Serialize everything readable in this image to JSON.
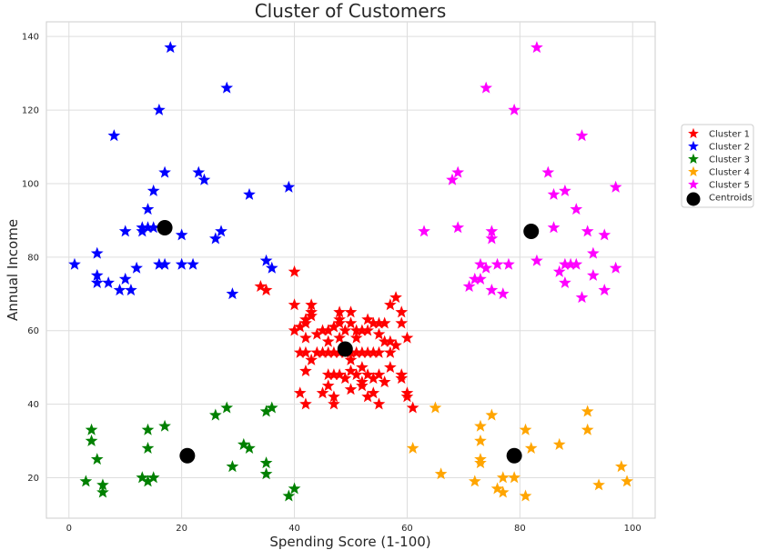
{
  "chart_data": {
    "type": "scatter",
    "title": "Cluster of Customers",
    "xlabel": "Spending Score (1-100)",
    "ylabel": "Annual Income",
    "xlim": [
      -4,
      104
    ],
    "ylim": [
      9,
      144
    ],
    "xticks": [
      0,
      20,
      40,
      60,
      80,
      100
    ],
    "yticks": [
      20,
      40,
      60,
      80,
      100,
      120,
      140
    ],
    "grid": true,
    "legend_position": "right",
    "series": [
      {
        "name": "Cluster 1",
        "color": "#ff0000",
        "marker": "star",
        "points": [
          [
            34,
            72
          ],
          [
            35,
            71
          ],
          [
            40,
            76
          ],
          [
            40,
            67
          ],
          [
            43,
            67
          ],
          [
            40,
            60
          ],
          [
            41,
            61
          ],
          [
            42,
            62
          ],
          [
            42,
            63
          ],
          [
            43,
            64
          ],
          [
            43,
            65
          ],
          [
            42,
            58
          ],
          [
            41,
            54
          ],
          [
            42,
            54
          ],
          [
            44,
            54
          ],
          [
            45,
            54
          ],
          [
            46,
            54
          ],
          [
            47,
            54
          ],
          [
            48,
            54
          ],
          [
            49,
            54
          ],
          [
            50,
            54
          ],
          [
            51,
            54
          ],
          [
            52,
            54
          ],
          [
            53,
            54
          ],
          [
            54,
            54
          ],
          [
            55,
            54
          ],
          [
            57,
            54
          ],
          [
            42,
            49
          ],
          [
            46,
            48
          ],
          [
            47,
            48
          ],
          [
            48,
            48
          ],
          [
            49,
            47
          ],
          [
            50,
            49
          ],
          [
            51,
            48
          ],
          [
            52,
            46
          ],
          [
            53,
            48
          ],
          [
            54,
            47
          ],
          [
            55,
            48
          ],
          [
            56,
            46
          ],
          [
            57,
            50
          ],
          [
            59,
            47
          ],
          [
            59,
            48
          ],
          [
            41,
            43
          ],
          [
            45,
            43
          ],
          [
            46,
            45
          ],
          [
            47,
            42
          ],
          [
            50,
            44
          ],
          [
            52,
            45
          ],
          [
            53,
            42
          ],
          [
            54,
            43
          ],
          [
            55,
            40
          ],
          [
            42,
            40
          ],
          [
            47,
            40
          ],
          [
            60,
            43
          ],
          [
            60,
            42
          ],
          [
            61,
            39
          ],
          [
            45,
            60
          ],
          [
            46,
            60
          ],
          [
            47,
            61
          ],
          [
            48,
            62
          ],
          [
            49,
            60
          ],
          [
            50,
            62
          ],
          [
            51,
            60
          ],
          [
            52,
            60
          ],
          [
            53,
            63
          ],
          [
            54,
            62
          ],
          [
            55,
            62
          ],
          [
            56,
            62
          ],
          [
            57,
            67
          ],
          [
            58,
            69
          ],
          [
            59,
            65
          ],
          [
            59,
            62
          ],
          [
            60,
            58
          ],
          [
            44,
            59
          ],
          [
            46,
            57
          ],
          [
            48,
            65
          ],
          [
            50,
            65
          ],
          [
            48,
            63
          ],
          [
            51,
            58
          ],
          [
            53,
            60
          ],
          [
            55,
            59
          ],
          [
            56,
            57
          ],
          [
            57,
            57
          ],
          [
            58,
            56
          ],
          [
            43,
            52
          ],
          [
            48,
            58
          ],
          [
            50,
            52
          ],
          [
            52,
            50
          ]
        ]
      },
      {
        "name": "Cluster 2",
        "color": "#0000ff",
        "marker": "star",
        "points": [
          [
            1,
            78
          ],
          [
            5,
            81
          ],
          [
            5,
            75
          ],
          [
            5,
            73
          ],
          [
            7,
            73
          ],
          [
            9,
            71
          ],
          [
            10,
            74
          ],
          [
            11,
            71
          ],
          [
            12,
            77
          ],
          [
            10,
            87
          ],
          [
            13,
            87
          ],
          [
            14,
            88
          ],
          [
            14,
            93
          ],
          [
            15,
            88
          ],
          [
            15,
            98
          ],
          [
            16,
            78
          ],
          [
            17,
            78
          ],
          [
            17,
            103
          ],
          [
            16,
            120
          ],
          [
            8,
            113
          ],
          [
            18,
            137
          ],
          [
            28,
            126
          ],
          [
            20,
            86
          ],
          [
            20,
            78
          ],
          [
            22,
            78
          ],
          [
            23,
            103
          ],
          [
            24,
            101
          ],
          [
            26,
            85
          ],
          [
            27,
            87
          ],
          [
            29,
            70
          ],
          [
            32,
            97
          ],
          [
            35,
            79
          ],
          [
            36,
            77
          ],
          [
            39,
            99
          ],
          [
            13,
            88
          ]
        ]
      },
      {
        "name": "Cluster 3",
        "color": "#008000",
        "marker": "star",
        "points": [
          [
            3,
            19
          ],
          [
            4,
            33
          ],
          [
            4,
            30
          ],
          [
            5,
            25
          ],
          [
            6,
            18
          ],
          [
            6,
            16
          ],
          [
            13,
            20
          ],
          [
            14,
            19
          ],
          [
            14,
            33
          ],
          [
            14,
            28
          ],
          [
            15,
            20
          ],
          [
            17,
            34
          ],
          [
            26,
            37
          ],
          [
            28,
            39
          ],
          [
            29,
            23
          ],
          [
            31,
            29
          ],
          [
            32,
            28
          ],
          [
            35,
            38
          ],
          [
            35,
            24
          ],
          [
            35,
            21
          ],
          [
            36,
            39
          ],
          [
            39,
            15
          ],
          [
            40,
            17
          ]
        ]
      },
      {
        "name": "Cluster 4",
        "color": "#ffa500",
        "marker": "star",
        "points": [
          [
            61,
            28
          ],
          [
            65,
            39
          ],
          [
            66,
            21
          ],
          [
            72,
            19
          ],
          [
            73,
            34
          ],
          [
            73,
            30
          ],
          [
            73,
            25
          ],
          [
            73,
            24
          ],
          [
            75,
            37
          ],
          [
            76,
            17
          ],
          [
            77,
            16
          ],
          [
            77,
            20
          ],
          [
            79,
            20
          ],
          [
            81,
            15
          ],
          [
            81,
            33
          ],
          [
            82,
            28
          ],
          [
            87,
            29
          ],
          [
            92,
            38
          ],
          [
            92,
            33
          ],
          [
            94,
            18
          ],
          [
            98,
            23
          ],
          [
            99,
            19
          ]
        ]
      },
      {
        "name": "Cluster 5",
        "color": "#ff00ff",
        "marker": "star",
        "points": [
          [
            63,
            87
          ],
          [
            68,
            101
          ],
          [
            69,
            103
          ],
          [
            69,
            88
          ],
          [
            71,
            72
          ],
          [
            72,
            74
          ],
          [
            73,
            78
          ],
          [
            73,
            74
          ],
          [
            74,
            77
          ],
          [
            74,
            126
          ],
          [
            75,
            87
          ],
          [
            75,
            85
          ],
          [
            75,
            71
          ],
          [
            76,
            78
          ],
          [
            77,
            70
          ],
          [
            78,
            78
          ],
          [
            79,
            120
          ],
          [
            83,
            137
          ],
          [
            83,
            79
          ],
          [
            85,
            103
          ],
          [
            86,
            97
          ],
          [
            86,
            88
          ],
          [
            87,
            76
          ],
          [
            88,
            98
          ],
          [
            88,
            73
          ],
          [
            88,
            78
          ],
          [
            89,
            78
          ],
          [
            90,
            93
          ],
          [
            90,
            78
          ],
          [
            91,
            69
          ],
          [
            91,
            113
          ],
          [
            92,
            87
          ],
          [
            93,
            81
          ],
          [
            93,
            75
          ],
          [
            95,
            86
          ],
          [
            95,
            71
          ],
          [
            97,
            99
          ],
          [
            97,
            77
          ]
        ]
      },
      {
        "name": "Centroids",
        "color": "#000000",
        "marker": "circle",
        "points": [
          [
            17,
            88
          ],
          [
            49,
            55
          ],
          [
            21,
            26
          ],
          [
            79,
            26
          ],
          [
            82,
            87
          ]
        ]
      }
    ]
  }
}
